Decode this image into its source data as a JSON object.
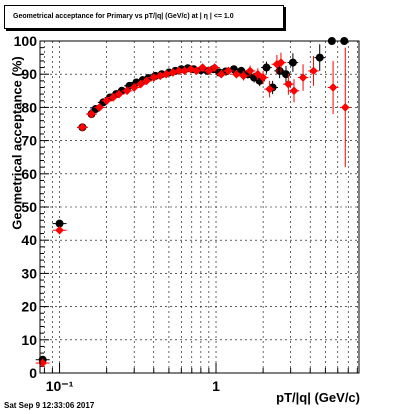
{
  "chart_data": {
    "type": "scatter",
    "title": "Geometrical acceptance for Primary vs pT/|q| (GeV/c) at |  η  | <= 1.0",
    "xlabel": "pT/|q| (GeV/c)",
    "ylabel": "Geometrical acceptance (%)",
    "x_scale": "log",
    "xlim": [
      0.075,
      8.2
    ],
    "ylim": [
      0,
      100
    ],
    "x_tick_labels": [
      "10⁻¹",
      "1"
    ],
    "y_tick_labels": [
      "0",
      "10",
      "20",
      "30",
      "40",
      "50",
      "60",
      "70",
      "80",
      "90",
      "100"
    ],
    "grid": true,
    "series": [
      {
        "color": "#000000",
        "points": [
          {
            "x": 0.078,
            "y": 4.0,
            "err": 0.5
          },
          {
            "x": 0.1,
            "y": 45.0,
            "err": 0.7
          },
          {
            "x": 0.14,
            "y": 74.0,
            "err": 0.5
          },
          {
            "x": 0.16,
            "y": 78.0,
            "err": 0.4
          },
          {
            "x": 0.17,
            "y": 79.5,
            "err": 0.4
          },
          {
            "x": 0.19,
            "y": 81.5,
            "err": 0.4
          },
          {
            "x": 0.21,
            "y": 83.0,
            "err": 0.4
          },
          {
            "x": 0.23,
            "y": 84.0,
            "err": 0.4
          },
          {
            "x": 0.25,
            "y": 85.0,
            "err": 0.4
          },
          {
            "x": 0.28,
            "y": 86.5,
            "err": 0.4
          },
          {
            "x": 0.31,
            "y": 87.5,
            "err": 0.4
          },
          {
            "x": 0.34,
            "y": 88.2,
            "err": 0.4
          },
          {
            "x": 0.37,
            "y": 88.8,
            "err": 0.4
          },
          {
            "x": 0.41,
            "y": 89.5,
            "err": 0.4
          },
          {
            "x": 0.45,
            "y": 90.0,
            "err": 0.4
          },
          {
            "x": 0.5,
            "y": 90.5,
            "err": 0.5
          },
          {
            "x": 0.55,
            "y": 91.0,
            "err": 0.5
          },
          {
            "x": 0.6,
            "y": 91.5,
            "err": 0.5
          },
          {
            "x": 0.66,
            "y": 91.8,
            "err": 0.5
          },
          {
            "x": 0.72,
            "y": 91.5,
            "err": 0.6
          },
          {
            "x": 0.8,
            "y": 91.2,
            "err": 0.6
          },
          {
            "x": 0.88,
            "y": 91.0,
            "err": 0.7
          },
          {
            "x": 0.96,
            "y": 91.5,
            "err": 0.8
          },
          {
            "x": 1.05,
            "y": 90.5,
            "err": 0.9
          },
          {
            "x": 1.15,
            "y": 90.8,
            "err": 1.0
          },
          {
            "x": 1.3,
            "y": 91.5,
            "err": 1.0
          },
          {
            "x": 1.45,
            "y": 91.0,
            "err": 1.2
          },
          {
            "x": 1.6,
            "y": 90.0,
            "err": 1.3
          },
          {
            "x": 1.75,
            "y": 89.0,
            "err": 1.5
          },
          {
            "x": 1.9,
            "y": 88.0,
            "err": 1.6
          },
          {
            "x": 2.1,
            "y": 92.0,
            "err": 1.8
          },
          {
            "x": 2.3,
            "y": 86.0,
            "err": 2.0
          },
          {
            "x": 2.55,
            "y": 91.0,
            "err": 2.2
          },
          {
            "x": 2.8,
            "y": 90.0,
            "err": 2.5
          },
          {
            "x": 3.1,
            "y": 93.5,
            "err": 2.8
          },
          {
            "x": 4.6,
            "y": 95.0,
            "err": 4.0
          },
          {
            "x": 5.5,
            "y": 100.0,
            "err": 0.0
          },
          {
            "x": 6.6,
            "y": 100.0,
            "err": 0.0
          }
        ]
      },
      {
        "color": "#ff0000",
        "points": [
          {
            "x": 0.078,
            "y": 3.0,
            "err": 0.5
          },
          {
            "x": 0.1,
            "y": 43.0,
            "err": 0.7
          },
          {
            "x": 0.14,
            "y": 74.0,
            "err": 0.5
          },
          {
            "x": 0.16,
            "y": 78.0,
            "err": 0.4
          },
          {
            "x": 0.18,
            "y": 80.0,
            "err": 0.4
          },
          {
            "x": 0.2,
            "y": 82.0,
            "err": 0.4
          },
          {
            "x": 0.22,
            "y": 83.0,
            "err": 0.4
          },
          {
            "x": 0.24,
            "y": 84.0,
            "err": 0.4
          },
          {
            "x": 0.27,
            "y": 85.0,
            "err": 0.4
          },
          {
            "x": 0.3,
            "y": 86.0,
            "err": 0.4
          },
          {
            "x": 0.33,
            "y": 87.0,
            "err": 0.4
          },
          {
            "x": 0.36,
            "y": 88.0,
            "err": 0.4
          },
          {
            "x": 0.4,
            "y": 89.0,
            "err": 0.4
          },
          {
            "x": 0.44,
            "y": 89.5,
            "err": 0.4
          },
          {
            "x": 0.48,
            "y": 90.0,
            "err": 0.5
          },
          {
            "x": 0.53,
            "y": 90.5,
            "err": 0.5
          },
          {
            "x": 0.58,
            "y": 91.0,
            "err": 0.5
          },
          {
            "x": 0.63,
            "y": 91.0,
            "err": 0.5
          },
          {
            "x": 0.69,
            "y": 91.5,
            "err": 0.6
          },
          {
            "x": 0.75,
            "y": 91.0,
            "err": 0.6
          },
          {
            "x": 0.82,
            "y": 92.0,
            "err": 0.7
          },
          {
            "x": 0.9,
            "y": 91.0,
            "err": 0.8
          },
          {
            "x": 0.98,
            "y": 92.0,
            "err": 0.9
          },
          {
            "x": 1.08,
            "y": 90.0,
            "err": 1.0
          },
          {
            "x": 1.2,
            "y": 91.0,
            "err": 1.1
          },
          {
            "x": 1.35,
            "y": 90.0,
            "err": 1.2
          },
          {
            "x": 1.5,
            "y": 89.5,
            "err": 1.4
          },
          {
            "x": 1.65,
            "y": 91.0,
            "err": 1.6
          },
          {
            "x": 1.85,
            "y": 90.0,
            "err": 1.8
          },
          {
            "x": 2.0,
            "y": 89.0,
            "err": 2.0
          },
          {
            "x": 2.2,
            "y": 85.5,
            "err": 2.5
          },
          {
            "x": 2.45,
            "y": 93.0,
            "err": 2.8
          },
          {
            "x": 2.6,
            "y": 93.5,
            "err": 3.0
          },
          {
            "x": 2.9,
            "y": 87.0,
            "err": 3.2
          },
          {
            "x": 3.15,
            "y": 85.0,
            "err": 3.5
          },
          {
            "x": 3.6,
            "y": 89.0,
            "err": 4.0
          },
          {
            "x": 4.2,
            "y": 91.0,
            "err": 4.5
          },
          {
            "x": 5.6,
            "y": 86.0,
            "err": 8.0
          },
          {
            "x": 6.7,
            "y": 80.0,
            "err": 18.0
          }
        ]
      }
    ]
  },
  "footer": {
    "timestamp": "Sat Sep  9 12:33:06 2017"
  }
}
